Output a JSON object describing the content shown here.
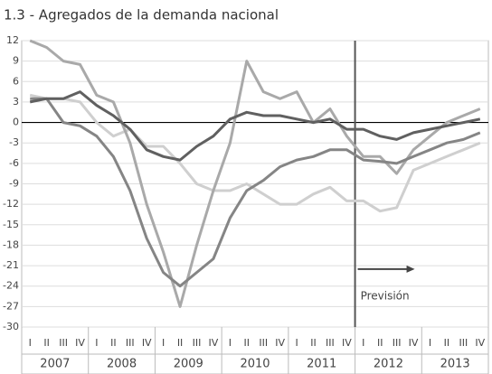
{
  "chart_data": {
    "type": "line",
    "title": "1.3 - Agregados de la demanda nacional",
    "categories": [
      "I",
      "II",
      "III",
      "IV",
      "I",
      "II",
      "III",
      "IV",
      "I",
      "II",
      "III",
      "IV",
      "I",
      "II",
      "III",
      "IV",
      "I",
      "II",
      "III",
      "IV",
      "I",
      "II",
      "III",
      "IV",
      "I",
      "II",
      "III",
      "IV"
    ],
    "years": [
      "2007",
      "2008",
      "2009",
      "2010",
      "2011",
      "2012",
      "2013"
    ],
    "series": [
      {
        "color": "#cfcfcf",
        "values": [
          4,
          3.5,
          3.5,
          3,
          0,
          -2,
          -1,
          -3.5,
          -3.5,
          -6,
          -9,
          -10,
          -10,
          -9,
          -10.5,
          -12,
          -12,
          -10.5,
          -9.5,
          -11.5,
          -11.5,
          -13,
          -12.5,
          -7,
          -6,
          -5,
          -4,
          -3
        ]
      },
      {
        "color": "#a9a9a9",
        "values": [
          12,
          11,
          9,
          8.5,
          4,
          3,
          -3,
          -12,
          -19,
          -27,
          -18,
          -10,
          -3,
          9,
          4.5,
          3.5,
          4.5,
          0,
          2,
          -2,
          -5,
          -5,
          -7.5,
          -4,
          -2,
          0,
          1,
          2
        ]
      },
      {
        "color": "#858585",
        "values": [
          3.5,
          3.5,
          0,
          -0.5,
          -2,
          -5,
          -10,
          -17,
          -22,
          -24,
          -22,
          -20,
          -14,
          -10,
          -8.5,
          -6.5,
          -5.5,
          -5,
          -4,
          -4,
          -5.5,
          -5.7,
          -6,
          -5,
          -4,
          -3,
          -2.5,
          -1.5
        ]
      },
      {
        "color": "#606060",
        "values": [
          3,
          3.5,
          3.5,
          4.5,
          2.5,
          1,
          -1,
          -4,
          -5,
          -5.5,
          -3.5,
          -2,
          0.5,
          1.5,
          1,
          1,
          0.5,
          0,
          0.5,
          -1,
          -1,
          -2,
          -2.5,
          -1.5,
          -1,
          -0.5,
          0,
          0.5
        ]
      }
    ],
    "annotation": "Previsión",
    "ylim": [
      -30,
      12
    ],
    "yticks": [
      12,
      9,
      6,
      3,
      0,
      -3,
      -6,
      -9,
      -12,
      -15,
      -18,
      -21,
      -24,
      -27,
      -30
    ],
    "grid": true
  }
}
